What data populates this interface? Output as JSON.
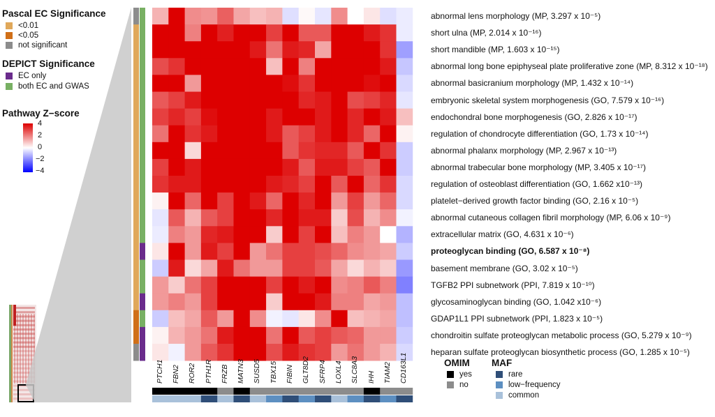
{
  "legend": {
    "pascal": {
      "title": "Pascal EC Significance",
      "items": [
        {
          "label": "<0.01",
          "color": "#e0a85a"
        },
        {
          "label": "<0.05",
          "color": "#d06f18"
        },
        {
          "label": "not significant",
          "color": "#8c8c8c"
        }
      ]
    },
    "depict": {
      "title": "DEPICT Significance",
      "items": [
        {
          "label": "EC only",
          "color": "#6a2c8c"
        },
        {
          "label": "both EC and GWAS",
          "color": "#78b063"
        }
      ]
    },
    "zscore": {
      "title": "Pathway Z−score",
      "ticks": [
        "4",
        "2",
        "0",
        "−2",
        "−4"
      ]
    }
  },
  "omim": {
    "title": "OMIM",
    "items": [
      {
        "label": "yes",
        "color": "#000000"
      },
      {
        "label": "no",
        "color": "#8c8c8c"
      }
    ]
  },
  "maf": {
    "title": "MAF",
    "items": [
      {
        "label": "rare",
        "color": "#2f4e78"
      },
      {
        "label": "low−frequency",
        "color": "#5d8fc1"
      },
      {
        "label": "common",
        "color": "#a9c1da"
      }
    ]
  },
  "chart_data": {
    "type": "heatmap",
    "colorscale": {
      "min": -4,
      "max": 4,
      "low": "#0000ff",
      "mid": "#ffffff",
      "high": "#dd0000"
    },
    "columns": [
      "PTCH1",
      "FBN2",
      "ROR2",
      "PTH1R",
      "FRZB",
      "MATN3",
      "SUSD5",
      "TBX15",
      "FIBIN",
      "GLT8D2",
      "SFRP4",
      "LOXL4",
      "SLC8A3",
      "IHH",
      "TIAM2",
      "CD163L1"
    ],
    "column_omim": [
      "yes",
      "yes",
      "yes",
      "yes",
      "no",
      "yes",
      "no",
      "no",
      "no",
      "no",
      "no",
      "no",
      "no",
      "yes",
      "no",
      "no"
    ],
    "column_maf": [
      "common",
      "common",
      "common",
      "rare",
      "common",
      "rare",
      "common",
      "low-frequency",
      "rare",
      "low-frequency",
      "rare",
      "common",
      "low-frequency",
      "rare",
      "low-frequency",
      "rare"
    ],
    "rows": [
      {
        "label": "abnormal lens morphology (MP, 3.297 x 10⁻⁵)",
        "pascal": "not significant",
        "depict": "both EC and GWAS",
        "bold": false,
        "values": [
          1.2,
          4.6,
          1.8,
          1.7,
          2.5,
          1.4,
          1.0,
          1.2,
          -0.5,
          0.1,
          -0.4,
          1.8,
          0.0,
          0.4,
          -0.5,
          -0.3
        ]
      },
      {
        "label": "short ulna (MP, 2.014 x 10⁻¹⁶)",
        "pascal": "<0.01",
        "depict": "both EC and GWAS",
        "bold": false,
        "values": [
          4.6,
          4.6,
          2.0,
          4.6,
          3.5,
          4.6,
          4.6,
          3.0,
          4.6,
          2.6,
          2.6,
          4.6,
          4.6,
          3.6,
          3.2,
          -0.3
        ]
      },
      {
        "label": "short mandible (MP, 1.603 x 10⁻¹⁵)",
        "pascal": "<0.01",
        "depict": "both EC and GWAS",
        "bold": false,
        "values": [
          4.6,
          4.6,
          4.6,
          4.6,
          4.6,
          4.6,
          3.6,
          2.2,
          3.6,
          3.4,
          1.4,
          4.0,
          4.6,
          4.6,
          3.2,
          -1.5
        ]
      },
      {
        "label": "abnormal long bone epiphyseal plate proliferative zone (MP, 8.312 x 10⁻¹⁸)",
        "pascal": "<0.01",
        "depict": "both EC and GWAS",
        "bold": false,
        "values": [
          2.8,
          3.2,
          4.0,
          4.6,
          4.6,
          4.6,
          4.6,
          1.0,
          4.6,
          2.0,
          4.6,
          4.6,
          4.6,
          4.6,
          3.6,
          -0.9
        ]
      },
      {
        "label": "abnormal basicranium morphology (MP, 1.432 x 10⁻¹⁴)",
        "pascal": "<0.01",
        "depict": "both EC and GWAS",
        "bold": false,
        "values": [
          4.0,
          4.6,
          1.6,
          4.6,
          4.6,
          4.6,
          4.6,
          4.6,
          3.8,
          3.2,
          4.6,
          4.6,
          4.6,
          3.8,
          4.6,
          -0.6
        ]
      },
      {
        "label": "embryonic skeletal system morphogenesis (GO, 7.579 x 10⁻¹⁶)",
        "pascal": "<0.01",
        "depict": "both EC and GWAS",
        "bold": false,
        "values": [
          2.6,
          3.0,
          3.6,
          4.6,
          4.6,
          4.6,
          4.6,
          4.6,
          4.0,
          3.4,
          3.6,
          4.6,
          2.8,
          3.0,
          3.4,
          -0.4
        ]
      },
      {
        "label": "endochondral bone morphogenesis (GO, 2.826 x 10⁻¹⁷)",
        "pascal": "<0.01",
        "depict": "both EC and GWAS",
        "bold": false,
        "values": [
          3.0,
          3.4,
          3.0,
          3.8,
          4.4,
          4.6,
          4.6,
          3.6,
          4.6,
          4.2,
          3.6,
          4.6,
          3.4,
          4.0,
          3.6,
          1.0
        ]
      },
      {
        "label": "regulation of chondrocyte differentiation (GO, 1.73 x 10⁻¹⁴)",
        "pascal": "<0.01",
        "depict": "both EC and GWAS",
        "bold": false,
        "values": [
          2.2,
          4.2,
          3.2,
          3.6,
          4.0,
          4.6,
          4.6,
          3.6,
          2.6,
          3.0,
          3.6,
          4.6,
          3.4,
          2.4,
          4.6,
          0.2
        ]
      },
      {
        "label": "abnormal phalanx morphology (MP, 2.967 x 10⁻¹³)",
        "pascal": "<0.01",
        "depict": "both EC and GWAS",
        "bold": false,
        "values": [
          4.0,
          4.6,
          0.6,
          4.6,
          4.6,
          4.6,
          4.0,
          4.0,
          2.6,
          3.2,
          3.4,
          3.4,
          2.6,
          4.4,
          3.2,
          -0.8
        ]
      },
      {
        "label": "abnormal trabecular bone morphology (MP, 3.405 x 10⁻¹⁷)",
        "pascal": "<0.01",
        "depict": "both EC and GWAS",
        "bold": false,
        "values": [
          3.0,
          4.6,
          3.6,
          4.6,
          4.6,
          4.6,
          4.6,
          4.0,
          3.6,
          2.6,
          3.6,
          3.6,
          3.0,
          2.6,
          4.6,
          -0.8
        ]
      },
      {
        "label": "regulation of osteoblast differentiation (GO, 1.662 x10⁻¹³)",
        "pascal": "<0.01",
        "depict": "both EC and GWAS",
        "bold": false,
        "values": [
          3.2,
          3.6,
          3.6,
          4.6,
          4.0,
          4.6,
          4.6,
          3.6,
          3.4,
          3.0,
          4.6,
          2.6,
          4.6,
          2.4,
          3.2,
          -0.6
        ]
      },
      {
        "label": "platelet−derived growth factor binding (GO, 2.16 x 10⁻⁵)",
        "pascal": "<0.01",
        "depict": "both EC and GWAS",
        "bold": false,
        "values": [
          0.2,
          4.6,
          2.4,
          4.6,
          3.0,
          4.6,
          3.6,
          2.4,
          4.6,
          3.4,
          4.6,
          1.6,
          3.0,
          1.6,
          2.4,
          -0.6
        ]
      },
      {
        "label": "abnormal cutaneous collagen fibril morphology (MP, 6.06 x 10⁻⁹)",
        "pascal": "<0.01",
        "depict": "both EC and GWAS",
        "bold": false,
        "values": [
          -0.4,
          2.6,
          1.2,
          2.6,
          3.0,
          4.6,
          4.6,
          3.4,
          4.6,
          3.6,
          3.6,
          0.8,
          2.8,
          1.2,
          1.8,
          -0.2
        ]
      },
      {
        "label": "extracellular matrix (GO, 4.631 x 10⁻⁶)",
        "pascal": "<0.01",
        "depict": "both EC and GWAS",
        "bold": false,
        "values": [
          -0.3,
          2.0,
          1.6,
          3.4,
          3.6,
          4.6,
          4.6,
          0.8,
          4.6,
          3.0,
          4.2,
          1.0,
          2.0,
          1.6,
          0.0,
          -1.2
        ]
      },
      {
        "label": "proteoglycan binding (GO, 6.587 x 10⁻⁸)",
        "pascal": "<0.01",
        "depict": "EC only",
        "bold": true,
        "values": [
          0.4,
          4.6,
          1.6,
          3.6,
          3.0,
          4.6,
          1.6,
          2.2,
          3.0,
          3.0,
          2.8,
          2.4,
          1.8,
          1.6,
          1.4,
          -0.8
        ]
      },
      {
        "label": "basement membrane (GO, 3.02 x 10⁻⁵)",
        "pascal": "<0.01",
        "depict": "both EC and GWAS",
        "bold": false,
        "values": [
          -0.8,
          3.6,
          0.6,
          1.4,
          3.6,
          2.2,
          1.6,
          1.6,
          3.0,
          3.0,
          2.6,
          1.4,
          0.6,
          1.2,
          0.8,
          -1.6
        ]
      },
      {
        "label": "TGFB2 PPI subnetwork (PPI, 7.819 x 10⁻¹⁰)",
        "pascal": "<0.01",
        "depict": "both EC and GWAS",
        "bold": false,
        "values": [
          1.6,
          0.8,
          2.2,
          3.0,
          4.6,
          4.6,
          4.6,
          3.0,
          4.6,
          3.6,
          4.6,
          1.8,
          2.0,
          2.6,
          2.0,
          -2.0
        ]
      },
      {
        "label": "glycosaminoglycan binding (GO, 1.042 x10⁻⁶)",
        "pascal": "<0.01",
        "depict": "EC only",
        "bold": false,
        "values": [
          1.6,
          2.0,
          1.6,
          3.0,
          4.6,
          4.6,
          4.6,
          0.8,
          4.6,
          4.4,
          3.6,
          2.0,
          2.0,
          1.4,
          1.6,
          -1.0
        ]
      },
      {
        "label": "GDAP1L1 PPI subnetwork (PPI, 1.823 x 10⁻⁵)",
        "pascal": "<0.05",
        "depict": "both EC and GWAS",
        "bold": false,
        "values": [
          -0.8,
          1.0,
          1.4,
          2.6,
          1.6,
          4.6,
          1.8,
          -0.2,
          -0.4,
          0.4,
          1.8,
          4.6,
          1.0,
          1.2,
          1.4,
          -1.0
        ]
      },
      {
        "label": "chondroitin sulfate proteoglycan metabolic process (GO, 5.279 x 10⁻⁹)",
        "pascal": "<0.05",
        "depict": "EC only",
        "bold": false,
        "values": [
          0.2,
          1.2,
          1.6,
          2.2,
          3.6,
          4.6,
          4.6,
          2.2,
          4.6,
          2.6,
          3.0,
          2.6,
          2.4,
          1.6,
          1.6,
          -0.8
        ]
      },
      {
        "label": "heparan sulfate proteoglycan biosynthetic process (GO, 1.285 x 10⁻⁵)",
        "pascal": "not significant",
        "depict": "EC only",
        "bold": false,
        "values": [
          0.4,
          -0.2,
          1.6,
          2.6,
          3.2,
          4.6,
          4.6,
          2.8,
          3.6,
          3.2,
          3.0,
          1.6,
          2.2,
          1.6,
          1.2,
          -0.6
        ]
      }
    ]
  }
}
